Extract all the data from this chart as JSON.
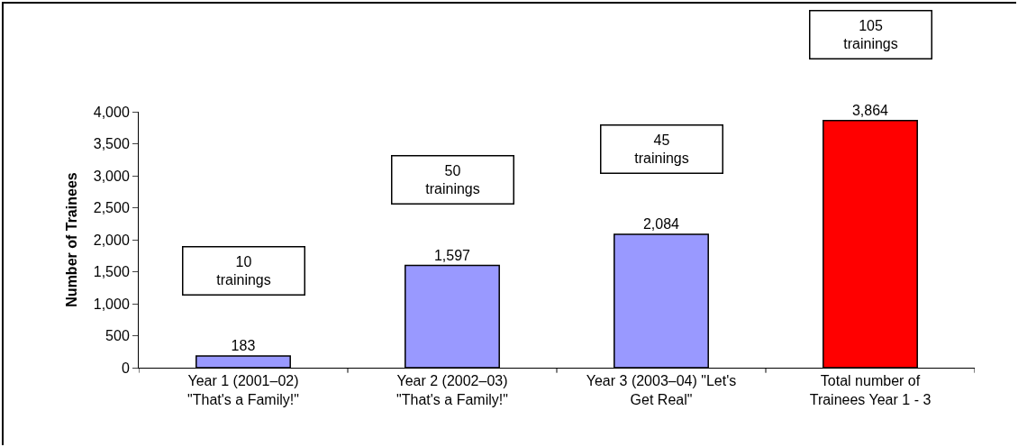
{
  "chart_data": {
    "type": "bar",
    "ylabel": "Number of Trainees",
    "categories": [
      "Year 1 (2001–02)\n\"That's a Family!\"",
      "Year 2 (2002–03)\n\"That's a Family!\"",
      "Year 3 (2003–04) \"Let's\nGet Real\"",
      "Total number of\nTrainees Year 1 - 3"
    ],
    "values": [
      183,
      1597,
      2084,
      3864
    ],
    "colors": [
      "#9999ff",
      "#9999ff",
      "#9999ff",
      "#ff0000"
    ],
    "ylim": [
      0,
      4000
    ],
    "yticks": [
      {
        "value": 0,
        "label": "0"
      },
      {
        "value": 500,
        "label": "500"
      },
      {
        "value": 1000,
        "label": "1,000"
      },
      {
        "value": 1500,
        "label": "1,500"
      },
      {
        "value": 2000,
        "label": "2,000"
      },
      {
        "value": 2500,
        "label": "2,500"
      },
      {
        "value": 3000,
        "label": "3,000"
      },
      {
        "value": 3500,
        "label": "3,500"
      },
      {
        "value": 4000,
        "label": "4,000"
      }
    ],
    "value_labels": [
      "183",
      "1,597",
      "2,084",
      "3,864"
    ],
    "annotations": [
      "10\ntrainings",
      "50\ntrainings",
      "45\ntrainings",
      "105\ntrainings"
    ],
    "grid": false
  }
}
